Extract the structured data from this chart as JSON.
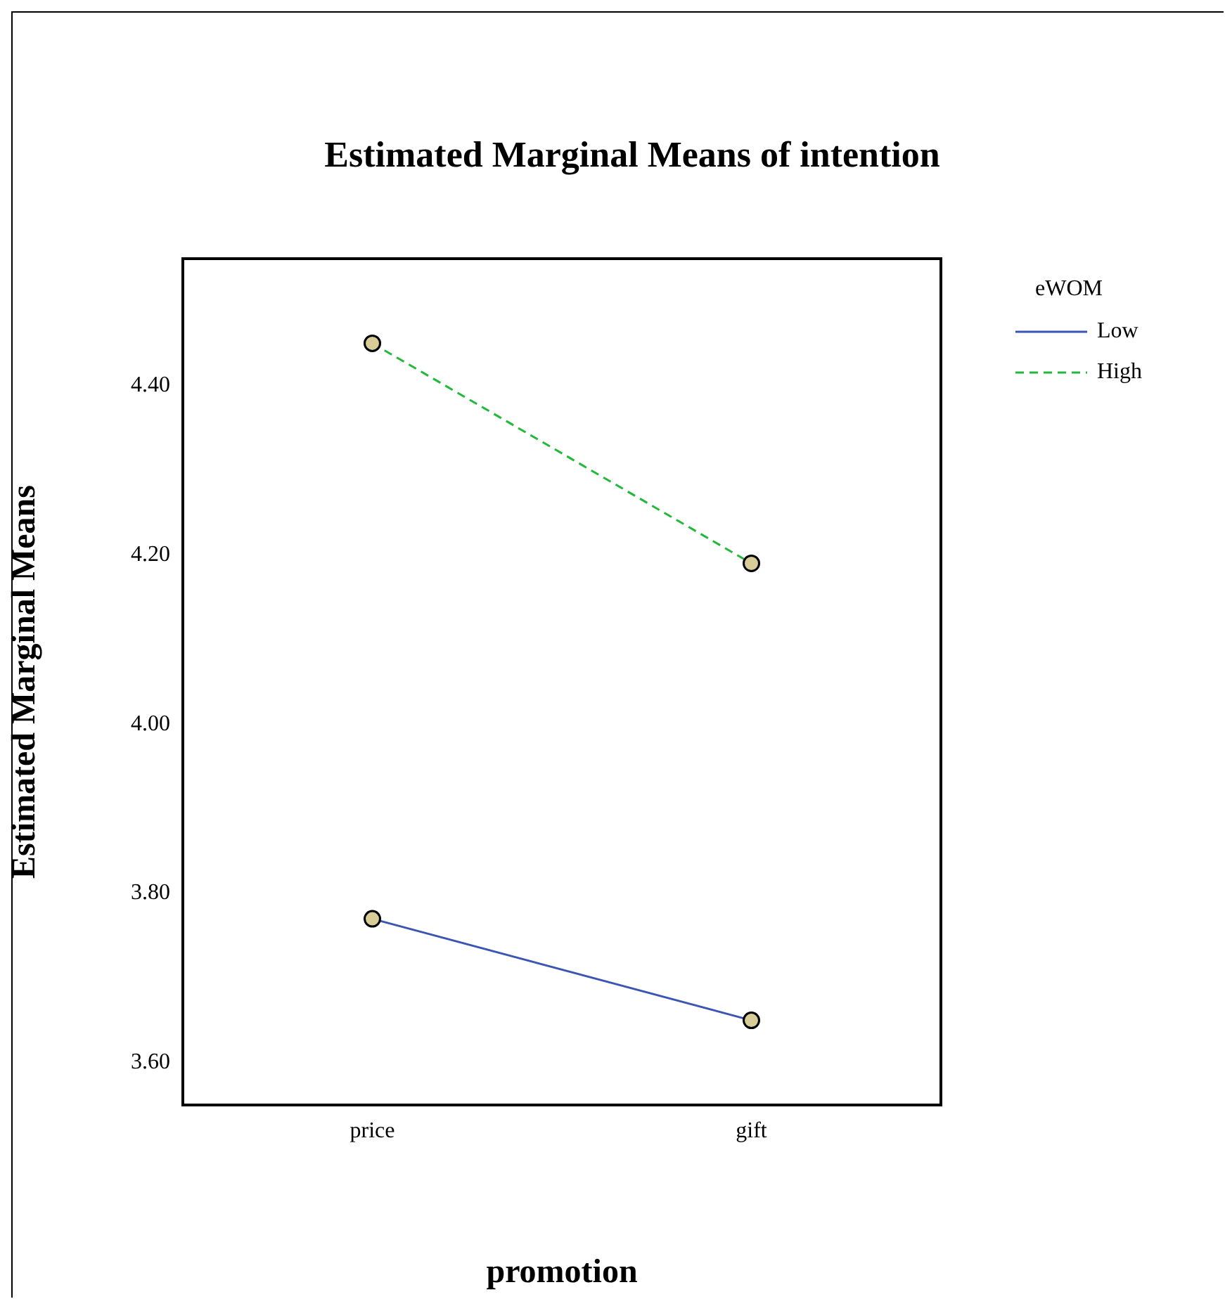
{
  "chart_data": {
    "type": "line",
    "title": "Estimated Marginal Means of intention",
    "xlabel": "promotion",
    "ylabel": "Estimated Marginal Means",
    "legend_title": "eWOM",
    "categories": [
      "price",
      "gift"
    ],
    "series": [
      {
        "name": "Low",
        "color": "#3a55b4",
        "line_style": "solid",
        "values": [
          3.77,
          3.65
        ]
      },
      {
        "name": "High",
        "color": "#22b83a",
        "line_style": "dashed",
        "values": [
          4.45,
          4.19
        ]
      }
    ],
    "ylim": [
      3.55,
      4.55
    ],
    "yticks": [
      {
        "value": 3.6,
        "label": "3.60"
      },
      {
        "value": 3.8,
        "label": "3.80"
      },
      {
        "value": 4.0,
        "label": "4.00"
      },
      {
        "value": 4.2,
        "label": "4.20"
      },
      {
        "value": 4.4,
        "label": "4.40"
      }
    ],
    "grid": false,
    "legend": "top right",
    "marker": "circle"
  }
}
